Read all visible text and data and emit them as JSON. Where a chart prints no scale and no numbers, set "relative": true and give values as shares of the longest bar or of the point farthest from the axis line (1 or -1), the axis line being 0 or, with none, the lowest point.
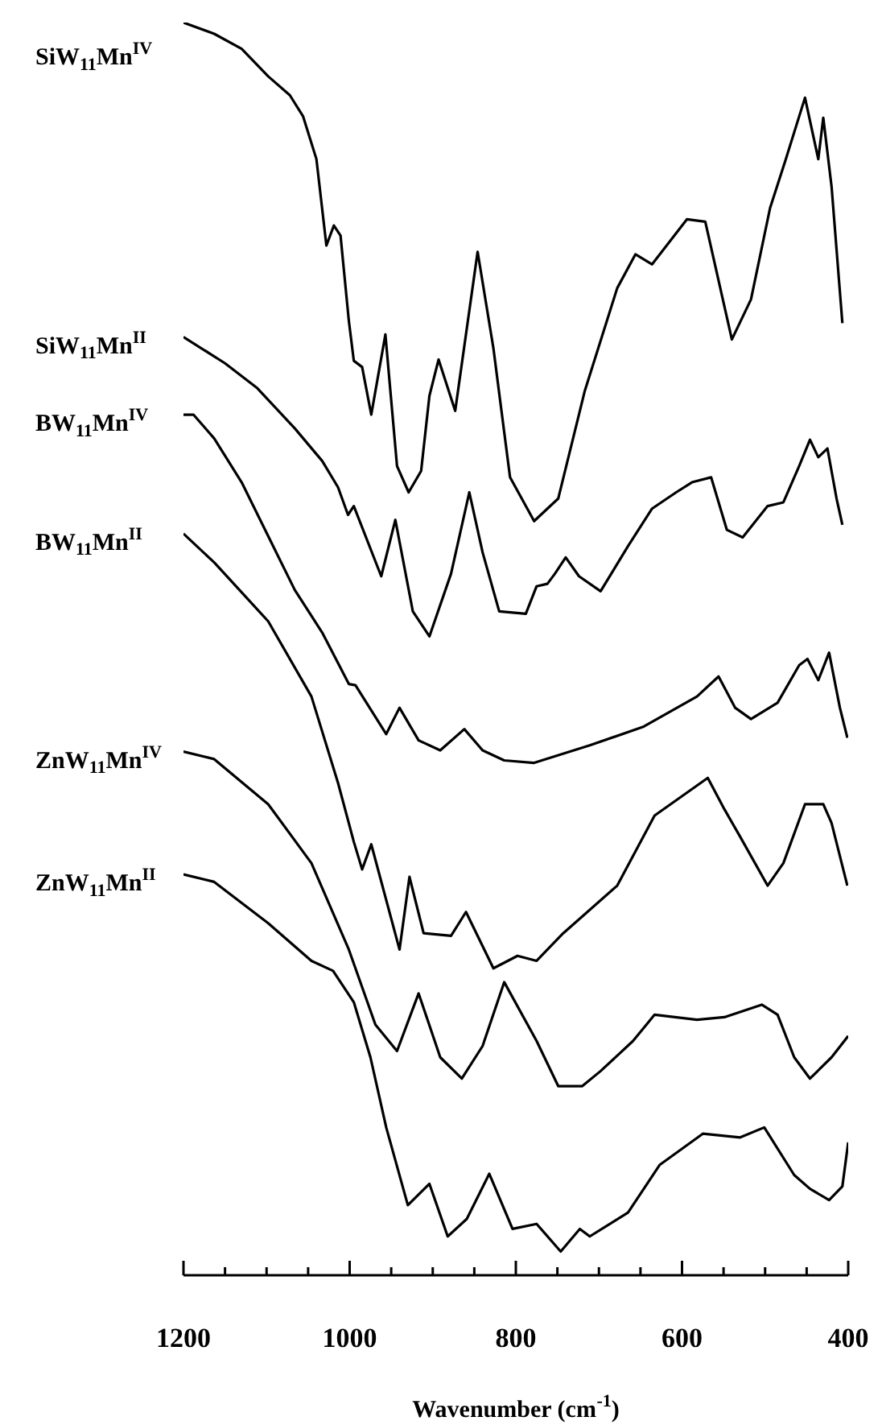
{
  "chart_data": {
    "type": "line",
    "relative": true,
    "xlabel": "Wavenumber (cm$^{-1}$)",
    "xlim": [
      1200,
      400
    ],
    "xticks": [
      1200,
      {
        "value": 1150,
        "label": null
      },
      {
        "value": 1100,
        "label": null
      },
      {
        "value": 1050,
        "label": null
      },
      1000,
      {
        "value": 950,
        "label": null
      },
      {
        "value": 900,
        "label": null
      },
      {
        "value": 850,
        "label": null
      },
      800,
      {
        "value": 750,
        "label": null
      },
      {
        "value": 700,
        "label": null
      },
      {
        "value": 650,
        "label": null
      },
      600,
      {
        "value": 550,
        "label": null
      },
      {
        "value": 500,
        "label": null
      },
      {
        "value": 450,
        "label": null
      },
      400
    ],
    "legend": false,
    "marker": "none",
    "line_style": "solid",
    "series": [
      {
        "name": "SiW$_{11}$Mn$^{IV}$",
        "color": "#000000",
        "x": [
          1200,
          1163,
          1130,
          1098,
          1072,
          1056,
          1040,
          1028,
          1019,
          1011,
          1001,
          995,
          985,
          974,
          957,
          943,
          929,
          914,
          904,
          893,
          873,
          846,
          827,
          807,
          778,
          749,
          717,
          678,
          656,
          636,
          594,
          572,
          540,
          517,
          494,
          475,
          452,
          436,
          430,
          420,
          407
        ],
        "values": [
          1.0,
          0.991,
          0.979,
          0.957,
          0.942,
          0.925,
          0.891,
          0.822,
          0.838,
          0.83,
          0.762,
          0.73,
          0.725,
          0.687,
          0.751,
          0.646,
          0.625,
          0.642,
          0.702,
          0.731,
          0.69,
          0.817,
          0.74,
          0.637,
          0.602,
          0.62,
          0.706,
          0.788,
          0.815,
          0.807,
          0.843,
          0.841,
          0.747,
          0.779,
          0.852,
          0.891,
          0.94,
          0.891,
          0.924,
          0.869,
          0.76
        ]
      },
      {
        "name": "SiW$_{11}$Mn$^{II}$",
        "color": "#000000",
        "x": [
          1200,
          1150,
          1111,
          1066,
          1033,
          1014,
          1002,
          995,
          962,
          945,
          924,
          904,
          878,
          856,
          840,
          820,
          788,
          775,
          762,
          753,
          740,
          724,
          698,
          665,
          636,
          607,
          588,
          565,
          546,
          527,
          497,
          478,
          459,
          446,
          436,
          425,
          414,
          407
        ],
        "values": [
          0.749,
          0.728,
          0.708,
          0.676,
          0.65,
          0.629,
          0.607,
          0.614,
          0.558,
          0.603,
          0.53,
          0.51,
          0.56,
          0.625,
          0.577,
          0.53,
          0.528,
          0.55,
          0.552,
          0.56,
          0.573,
          0.558,
          0.546,
          0.582,
          0.612,
          0.625,
          0.633,
          0.637,
          0.595,
          0.589,
          0.614,
          0.617,
          0.646,
          0.667,
          0.653,
          0.66,
          0.62,
          0.599
        ]
      },
      {
        "name": "BW$_{11}$Mn$^{IV}$",
        "color": "#000000",
        "x": [
          1200,
          1188,
          1163,
          1130,
          1098,
          1066,
          1033,
          1001,
          993,
          956,
          940,
          917,
          891,
          862,
          840,
          814,
          778,
          711,
          646,
          582,
          556,
          536,
          517,
          485,
          459,
          449,
          436,
          423,
          410,
          401
        ],
        "values": [
          0.687,
          0.687,
          0.668,
          0.633,
          0.59,
          0.547,
          0.513,
          0.472,
          0.471,
          0.432,
          0.453,
          0.427,
          0.419,
          0.436,
          0.419,
          0.411,
          0.409,
          0.423,
          0.438,
          0.462,
          0.478,
          0.453,
          0.444,
          0.457,
          0.487,
          0.492,
          0.475,
          0.497,
          0.453,
          0.429
        ]
      },
      {
        "name": "BW$_{11}$Mn$^{II}$",
        "color": "#000000",
        "x": [
          1200,
          1163,
          1098,
          1046,
          1014,
          995,
          985,
          974,
          940,
          928,
          911,
          878,
          860,
          827,
          798,
          775,
          743,
          678,
          633,
          569,
          549,
          530,
          497,
          478,
          452,
          430,
          420,
          401
        ],
        "values": [
          0.592,
          0.569,
          0.522,
          0.462,
          0.393,
          0.346,
          0.324,
          0.344,
          0.26,
          0.318,
          0.273,
          0.271,
          0.29,
          0.245,
          0.255,
          0.251,
          0.273,
          0.311,
          0.367,
          0.397,
          0.372,
          0.35,
          0.311,
          0.329,
          0.376,
          0.376,
          0.361,
          0.311
        ]
      },
      {
        "name": "ZnW$_{11}$Mn$^{IV}$",
        "color": "#000000",
        "x": [
          1200,
          1163,
          1098,
          1046,
          1001,
          969,
          943,
          917,
          891,
          865,
          840,
          814,
          775,
          749,
          720,
          698,
          659,
          633,
          582,
          549,
          504,
          485,
          465,
          446,
          420,
          400
        ],
        "values": [
          0.418,
          0.412,
          0.376,
          0.329,
          0.26,
          0.2,
          0.179,
          0.225,
          0.174,
          0.157,
          0.183,
          0.234,
          0.187,
          0.151,
          0.151,
          0.163,
          0.187,
          0.208,
          0.204,
          0.206,
          0.216,
          0.208,
          0.174,
          0.157,
          0.174,
          0.191
        ]
      },
      {
        "name": "ZnW$_{11}$Mn$^{II}$",
        "color": "#000000",
        "x": [
          1200,
          1163,
          1098,
          1046,
          1020,
          995,
          975,
          956,
          930,
          904,
          882,
          859,
          832,
          804,
          775,
          746,
          723,
          711,
          665,
          627,
          575,
          530,
          501,
          465,
          446,
          423,
          407,
          400
        ],
        "values": [
          0.32,
          0.314,
          0.281,
          0.251,
          0.243,
          0.218,
          0.174,
          0.118,
          0.056,
          0.073,
          0.031,
          0.045,
          0.081,
          0.037,
          0.041,
          0.019,
          0.037,
          0.031,
          0.05,
          0.088,
          0.113,
          0.11,
          0.118,
          0.08,
          0.069,
          0.06,
          0.071,
          0.106
        ]
      }
    ]
  }
}
